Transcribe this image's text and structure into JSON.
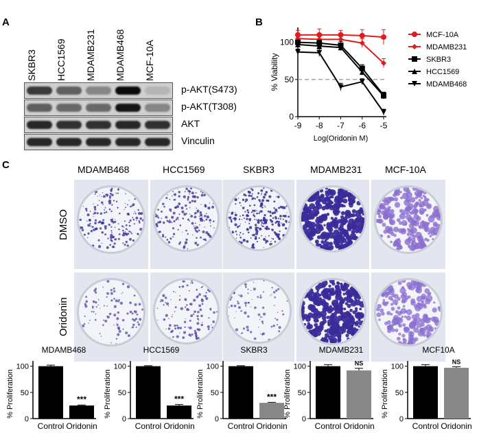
{
  "panels": {
    "a": "A",
    "b": "B",
    "c": "C"
  },
  "western_blot": {
    "lanes": [
      "SKBR3",
      "HCC1569",
      "MDAMB231",
      "MDAMB468",
      "MCF-10A"
    ],
    "rows": [
      {
        "label": "p-AKT(S473)",
        "intensity": [
          0.75,
          0.55,
          0.35,
          1.0,
          0.1
        ]
      },
      {
        "label": "p-AKT(T308)",
        "intensity": [
          0.55,
          0.5,
          0.5,
          0.95,
          0.35
        ]
      },
      {
        "label": "AKT",
        "intensity": [
          0.85,
          0.8,
          0.8,
          0.85,
          0.8
        ]
      },
      {
        "label": "Vinculin",
        "intensity": [
          0.85,
          0.85,
          0.85,
          0.85,
          0.85
        ]
      }
    ]
  },
  "chart_data": [
    {
      "type": "line",
      "xlabel": "Log(Oridonin M)",
      "ylabel": "% Viability",
      "xlim": [
        -9,
        -5
      ],
      "ylim": [
        0,
        120
      ],
      "xticks": [
        -9,
        -8,
        -7,
        -6,
        -5
      ],
      "yticks": [
        0,
        50,
        100
      ],
      "reference_line": 50,
      "legend_position": "right",
      "series": [
        {
          "name": "MCF-10A",
          "color": "#e31a1c",
          "marker": "circle",
          "x": [
            -9,
            -8,
            -7,
            -6,
            -5
          ],
          "y": [
            110,
            110,
            110,
            109,
            107
          ],
          "err": [
            6,
            8,
            6,
            8,
            10
          ]
        },
        {
          "name": "MDAMB231",
          "color": "#e31a1c",
          "marker": "diamond",
          "x": [
            -9,
            -8,
            -7,
            -6,
            -5
          ],
          "y": [
            105,
            104,
            104,
            99,
            72
          ],
          "err": [
            4,
            5,
            5,
            6,
            6
          ]
        },
        {
          "name": "SKBR3",
          "color": "#000000",
          "marker": "square",
          "x": [
            -9,
            -8,
            -7,
            -6,
            -5
          ],
          "y": [
            100,
            99,
            96,
            65,
            29
          ],
          "err": [
            3,
            4,
            5,
            5,
            4
          ]
        },
        {
          "name": "HCC1569",
          "color": "#000000",
          "marker": "triangle",
          "x": [
            -9,
            -8,
            -7,
            -6,
            -5
          ],
          "y": [
            97,
            95,
            93,
            60,
            28
          ],
          "err": [
            3,
            4,
            4,
            4,
            4
          ]
        },
        {
          "name": "MDAMB468",
          "color": "#000000",
          "marker": "triangle-down",
          "x": [
            -9,
            -8,
            -7,
            -6,
            -5
          ],
          "y": [
            87,
            86,
            40,
            47,
            6
          ],
          "err": [
            4,
            5,
            5,
            4,
            4
          ]
        }
      ]
    },
    {
      "type": "bar",
      "title": "MDAMB468",
      "ylabel": "% Proliferation",
      "ylim": [
        0,
        110
      ],
      "yticks": [
        0,
        50,
        100
      ],
      "categories": [
        "Control",
        "Oridonin"
      ],
      "values": [
        100,
        25
      ],
      "err": [
        2,
        1
      ],
      "colors": [
        "#000000",
        "#000000"
      ],
      "annotation": "***"
    },
    {
      "type": "bar",
      "title": "HCC1569",
      "ylabel": "% Proliferation",
      "ylim": [
        0,
        110
      ],
      "yticks": [
        0,
        50,
        100
      ],
      "categories": [
        "Control",
        "Oridonin"
      ],
      "values": [
        100,
        25
      ],
      "err": [
        1,
        2
      ],
      "colors": [
        "#000000",
        "#000000"
      ],
      "annotation": "***"
    },
    {
      "type": "bar",
      "title": "SKBR3",
      "ylabel": "% Proliferation",
      "ylim": [
        0,
        110
      ],
      "yticks": [
        0,
        50,
        100
      ],
      "categories": [
        "Control",
        "Oridonin"
      ],
      "values": [
        100,
        30
      ],
      "err": [
        1,
        1
      ],
      "colors": [
        "#000000",
        "#888888"
      ],
      "annotation": "***"
    },
    {
      "type": "bar",
      "title": "MDAMB231",
      "ylabel": "% Proliferation",
      "ylim": [
        0,
        110
      ],
      "yticks": [
        0,
        50,
        100
      ],
      "categories": [
        "Control",
        "Oridonin"
      ],
      "values": [
        100,
        92
      ],
      "err": [
        3,
        4
      ],
      "colors": [
        "#000000",
        "#888888"
      ],
      "annotation": "NS"
    },
    {
      "type": "bar",
      "title": "MCF10A",
      "ylabel": "% Proliferation",
      "ylim": [
        0,
        110
      ],
      "yticks": [
        0,
        50,
        100
      ],
      "categories": [
        "Control",
        "Oridonin"
      ],
      "values": [
        100,
        97
      ],
      "err": [
        3,
        2
      ],
      "colors": [
        "#000000",
        "#888888"
      ],
      "annotation": "NS"
    }
  ],
  "colony_assay": {
    "cell_lines": [
      "MDAMB468",
      "HCC1569",
      "SKBR3",
      "MDAMB231",
      "MCF-10A"
    ],
    "conditions": [
      "DMSO",
      "Oridonin"
    ],
    "density": [
      [
        0.55,
        0.5,
        0.75,
        0.95,
        0.6
      ],
      [
        0.2,
        0.3,
        0.15,
        0.95,
        0.5
      ]
    ]
  }
}
